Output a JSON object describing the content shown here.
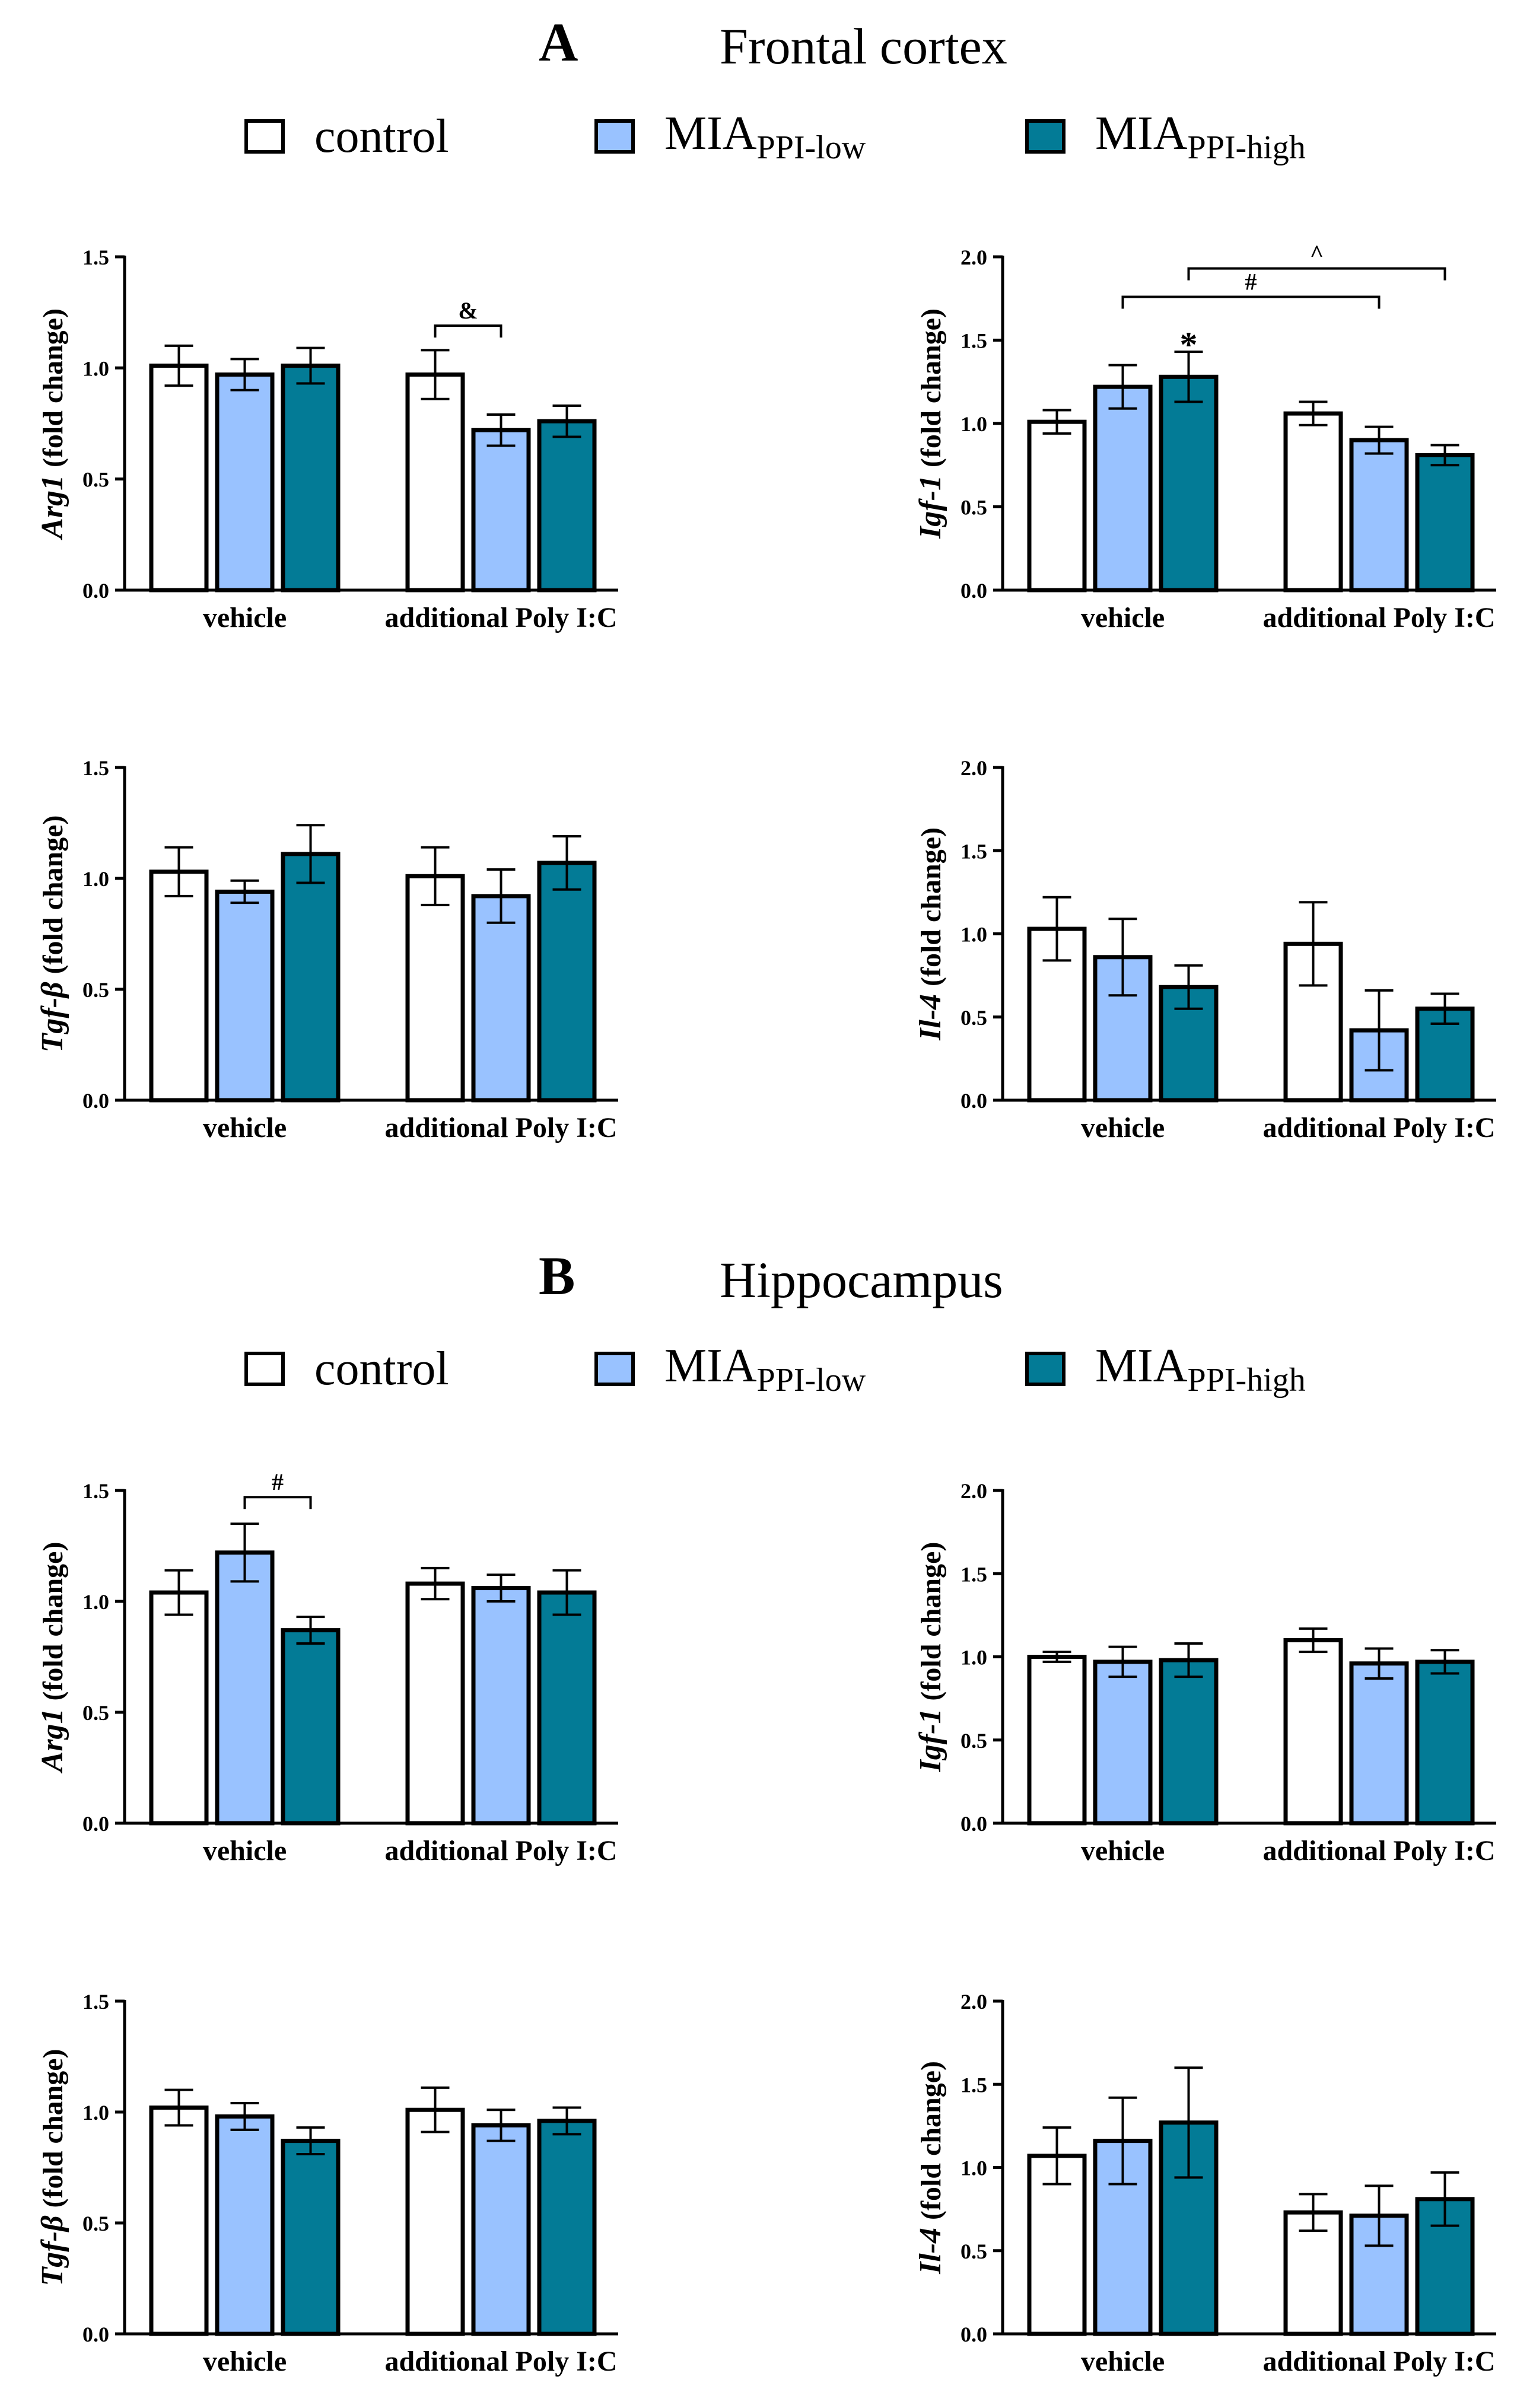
{
  "colors": {
    "control": "#ffffff",
    "MIA_PPI_low": "#99c2ff",
    "MIA_PPI_high": "#037b96",
    "stroke": "#000000"
  },
  "sections": [
    {
      "letter": "A",
      "title": "Frontal cortex",
      "legend": [
        {
          "main": "control",
          "sub": ""
        },
        {
          "main": "MIA",
          "sub": "PPI-low"
        },
        {
          "main": "MIA",
          "sub": "PPI-high"
        }
      ]
    },
    {
      "letter": "B",
      "title": "Hippocampus",
      "legend": [
        {
          "main": "control",
          "sub": ""
        },
        {
          "main": "MIA",
          "sub": "PPI-low"
        },
        {
          "main": "MIA",
          "sub": "PPI-high"
        }
      ]
    }
  ],
  "chart_data": [
    {
      "type": "bar",
      "section": "A",
      "gene": "Arg1",
      "ylabel_suffix": "(fold change)",
      "categories": [
        "vehicle",
        "additional Poly I:C"
      ],
      "ylim": [
        0,
        1.5
      ],
      "yticks": [
        "0.0",
        "0.5",
        "1.0",
        "1.5"
      ],
      "series": [
        {
          "name": "control",
          "values": [
            1.01,
            0.97
          ],
          "errors": [
            0.09,
            0.11
          ]
        },
        {
          "name": "MIA PPI-low",
          "values": [
            0.97,
            0.72
          ],
          "errors": [
            0.07,
            0.07
          ]
        },
        {
          "name": "MIA PPI-high",
          "values": [
            1.01,
            0.76
          ],
          "errors": [
            0.08,
            0.07
          ]
        }
      ],
      "annotations": [
        {
          "type": "bracket",
          "label": "&",
          "group": 1,
          "from": 0,
          "to": 1,
          "y": 1.19
        }
      ]
    },
    {
      "type": "bar",
      "section": "A",
      "gene": "Igf-1",
      "ylabel_suffix": "(fold change)",
      "categories": [
        "vehicle",
        "additional Poly I:C"
      ],
      "ylim": [
        0,
        2.0
      ],
      "yticks": [
        "0.0",
        "0.5",
        "1.0",
        "1.5",
        "2.0"
      ],
      "series": [
        {
          "name": "control",
          "values": [
            1.01,
            1.06
          ],
          "errors": [
            0.07,
            0.07
          ]
        },
        {
          "name": "MIA PPI-low",
          "values": [
            1.22,
            0.9
          ],
          "errors": [
            0.13,
            0.08
          ]
        },
        {
          "name": "MIA PPI-high",
          "values": [
            1.28,
            0.81
          ],
          "errors": [
            0.15,
            0.06
          ]
        }
      ],
      "annotations": [
        {
          "type": "star",
          "label": "*",
          "group": 0,
          "bar": 2,
          "y": 1.48
        },
        {
          "type": "span",
          "label": "#",
          "from": [
            0,
            1
          ],
          "to": [
            1,
            1
          ],
          "y": 1.76
        },
        {
          "type": "span",
          "label": "^",
          "from": [
            0,
            2
          ],
          "to": [
            1,
            2
          ],
          "y": 1.93
        }
      ]
    },
    {
      "type": "bar",
      "section": "A",
      "gene": "Tgf-β",
      "ylabel_suffix": "(fold change)",
      "categories": [
        "vehicle",
        "additional Poly I:C"
      ],
      "ylim": [
        0,
        1.5
      ],
      "yticks": [
        "0.0",
        "0.5",
        "1.0",
        "1.5"
      ],
      "series": [
        {
          "name": "control",
          "values": [
            1.03,
            1.01
          ],
          "errors": [
            0.11,
            0.13
          ]
        },
        {
          "name": "MIA PPI-low",
          "values": [
            0.94,
            0.92
          ],
          "errors": [
            0.05,
            0.12
          ]
        },
        {
          "name": "MIA PPI-high",
          "values": [
            1.11,
            1.07
          ],
          "errors": [
            0.13,
            0.12
          ]
        }
      ],
      "annotations": []
    },
    {
      "type": "bar",
      "section": "A",
      "gene": "Il-4",
      "ylabel_suffix": "(fold change)",
      "categories": [
        "vehicle",
        "additional Poly I:C"
      ],
      "ylim": [
        0,
        2.0
      ],
      "yticks": [
        "0.0",
        "0.5",
        "1.0",
        "1.5",
        "2.0"
      ],
      "series": [
        {
          "name": "control",
          "values": [
            1.03,
            0.94
          ],
          "errors": [
            0.19,
            0.25
          ]
        },
        {
          "name": "MIA PPI-low",
          "values": [
            0.86,
            0.42
          ],
          "errors": [
            0.23,
            0.24
          ]
        },
        {
          "name": "MIA PPI-high",
          "values": [
            0.68,
            0.55
          ],
          "errors": [
            0.13,
            0.09
          ]
        }
      ],
      "annotations": []
    },
    {
      "type": "bar",
      "section": "B",
      "gene": "Arg1",
      "ylabel_suffix": "(fold change)",
      "categories": [
        "vehicle",
        "additional Poly I:C"
      ],
      "ylim": [
        0,
        1.5
      ],
      "yticks": [
        "0.0",
        "0.5",
        "1.0",
        "1.5"
      ],
      "series": [
        {
          "name": "control",
          "values": [
            1.04,
            1.08
          ],
          "errors": [
            0.1,
            0.07
          ]
        },
        {
          "name": "MIA PPI-low",
          "values": [
            1.22,
            1.06
          ],
          "errors": [
            0.13,
            0.06
          ]
        },
        {
          "name": "MIA PPI-high",
          "values": [
            0.87,
            1.04
          ],
          "errors": [
            0.06,
            0.1
          ]
        }
      ],
      "annotations": [
        {
          "type": "bracket",
          "label": "#",
          "group": 0,
          "from": 1,
          "to": 2,
          "y": 1.47
        }
      ]
    },
    {
      "type": "bar",
      "section": "B",
      "gene": "Igf-1",
      "ylabel_suffix": "(fold change)",
      "categories": [
        "vehicle",
        "additional Poly I:C"
      ],
      "ylim": [
        0,
        2.0
      ],
      "yticks": [
        "0.0",
        "0.5",
        "1.0",
        "1.5",
        "2.0"
      ],
      "series": [
        {
          "name": "control",
          "values": [
            1.0,
            1.1
          ],
          "errors": [
            0.03,
            0.07
          ]
        },
        {
          "name": "MIA PPI-low",
          "values": [
            0.97,
            0.96
          ],
          "errors": [
            0.09,
            0.09
          ]
        },
        {
          "name": "MIA PPI-high",
          "values": [
            0.98,
            0.97
          ],
          "errors": [
            0.1,
            0.07
          ]
        }
      ],
      "annotations": []
    },
    {
      "type": "bar",
      "section": "B",
      "gene": "Tgf-β",
      "ylabel_suffix": "(fold change)",
      "categories": [
        "vehicle",
        "additional Poly I:C"
      ],
      "ylim": [
        0,
        1.5
      ],
      "yticks": [
        "0.0",
        "0.5",
        "1.0",
        "1.5"
      ],
      "series": [
        {
          "name": "control",
          "values": [
            1.02,
            1.01
          ],
          "errors": [
            0.08,
            0.1
          ]
        },
        {
          "name": "MIA PPI-low",
          "values": [
            0.98,
            0.94
          ],
          "errors": [
            0.06,
            0.07
          ]
        },
        {
          "name": "MIA PPI-high",
          "values": [
            0.87,
            0.96
          ],
          "errors": [
            0.06,
            0.06
          ]
        }
      ],
      "annotations": []
    },
    {
      "type": "bar",
      "section": "B",
      "gene": "Il-4",
      "ylabel_suffix": "(fold change)",
      "categories": [
        "vehicle",
        "additional Poly I:C"
      ],
      "ylim": [
        0,
        2.0
      ],
      "yticks": [
        "0.0",
        "0.5",
        "1.0",
        "1.5",
        "2.0"
      ],
      "series": [
        {
          "name": "control",
          "values": [
            1.07,
            0.73
          ],
          "errors": [
            0.17,
            0.11
          ]
        },
        {
          "name": "MIA PPI-low",
          "values": [
            1.16,
            0.71
          ],
          "errors": [
            0.26,
            0.18
          ]
        },
        {
          "name": "MIA PPI-high",
          "values": [
            1.27,
            0.81
          ],
          "errors": [
            0.33,
            0.16
          ]
        }
      ],
      "annotations": []
    }
  ]
}
